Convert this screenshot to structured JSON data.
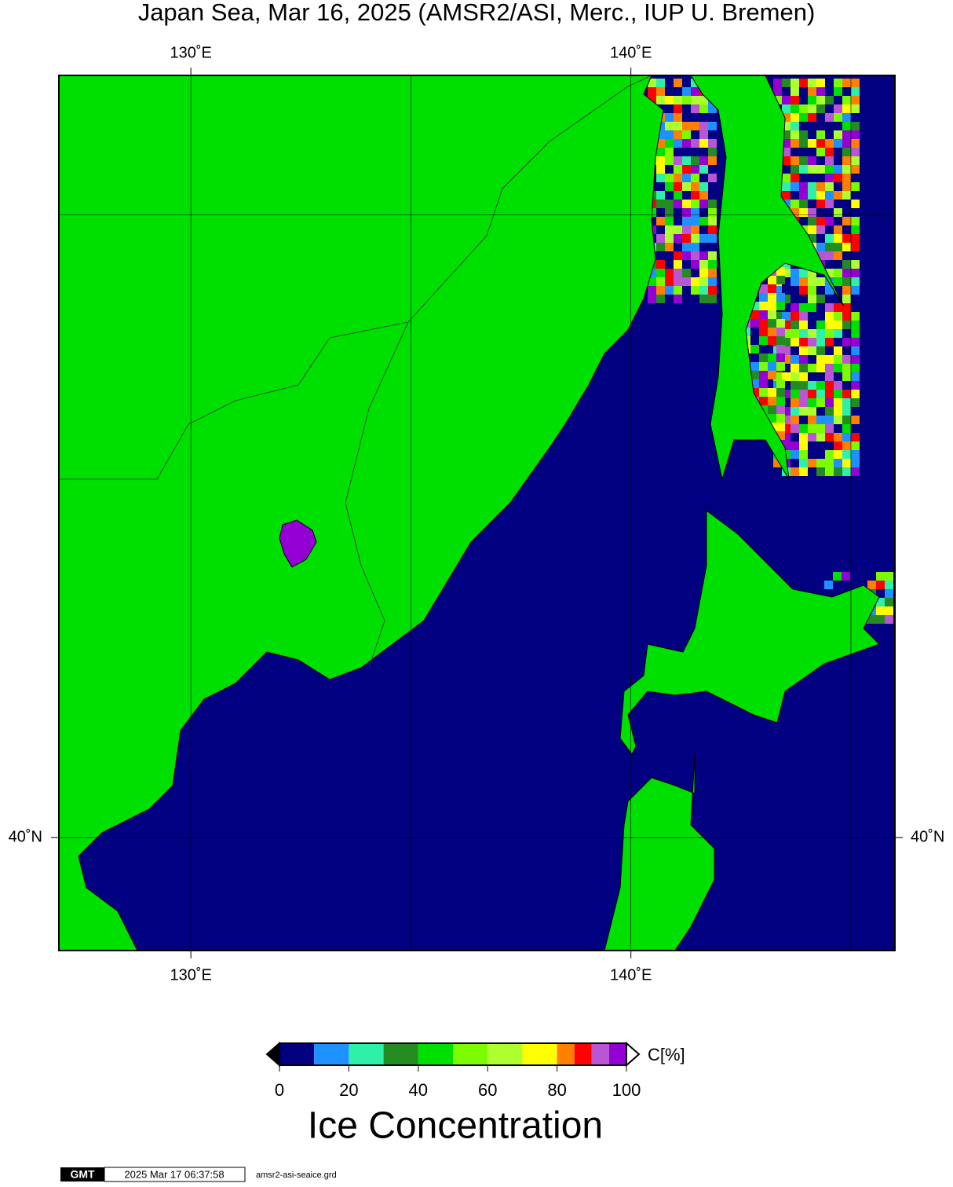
{
  "map": {
    "title": "Japan Sea, Mar 16, 2025 (AMSR2/ASI, Merc., IUP U. Bremen)",
    "xlim": [
      127,
      146
    ],
    "ylim": [
      38,
      52
    ],
    "xticks": [
      {
        "value": 130,
        "label": "130˚E"
      },
      {
        "value": 140,
        "label": "140˚E"
      }
    ],
    "yticks": [
      {
        "value": 40,
        "label": "40˚N"
      }
    ],
    "grid_lon": [
      135,
      145
    ],
    "grid_lat": [
      50
    ]
  },
  "colorbar": {
    "unit": "C[%]",
    "title": "Ice Concentration",
    "lim": [
      0,
      100
    ],
    "ticks": [
      0,
      20,
      40,
      60,
      80,
      100
    ],
    "bounds": [
      0,
      10,
      20,
      30,
      40,
      50,
      60,
      70,
      80,
      85,
      90,
      95,
      100
    ],
    "colors": [
      "#000080",
      "#1e90ff",
      "#2ef0a8",
      "#228b22",
      "#00e000",
      "#7cfc00",
      "#adff2f",
      "#ffff00",
      "#ff8000",
      "#ff0000",
      "#ba55d3",
      "#9400d3"
    ]
  },
  "footer": {
    "logo": "GMT",
    "timestamp": "2025 Mar 17 06:37:58",
    "file": "amsr2-asi-seaice.grd"
  }
}
